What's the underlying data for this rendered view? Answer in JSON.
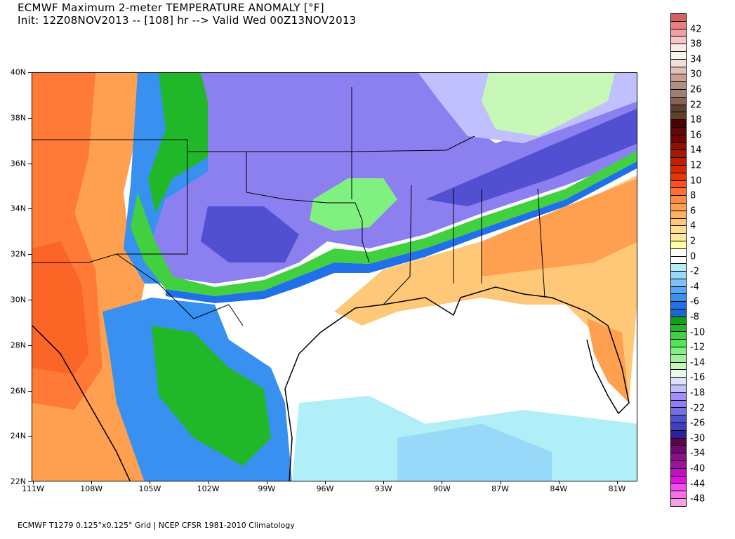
{
  "header": {
    "title": "ECMWF Maximum 2-meter TEMPERATURE ANOMALY [°F]",
    "subtitle": "Init: 12Z08NOV2013 -- [108] hr --> Valid Wed 00Z13NOV2013"
  },
  "map": {
    "lat_labels": [
      "40N",
      "38N",
      "36N",
      "34N",
      "32N",
      "30N",
      "28N",
      "26N",
      "24N",
      "22N"
    ],
    "lon_labels": [
      "111W",
      "108W",
      "105W",
      "102W",
      "99W",
      "96W",
      "93W",
      "90W",
      "87W",
      "84W",
      "81W"
    ],
    "extent": {
      "lon": [
        -111,
        -80
      ],
      "lat": [
        22,
        40
      ]
    }
  },
  "colorbar": {
    "labels": [
      "42",
      "38",
      "34",
      "30",
      "26",
      "22",
      "18",
      "16",
      "14",
      "12",
      "10",
      "8",
      "6",
      "4",
      "2",
      "0",
      "-2",
      "-4",
      "-6",
      "-8",
      "-10",
      "-12",
      "-14",
      "-16",
      "-18",
      "-22",
      "-26",
      "-30",
      "-34",
      "-40",
      "-44",
      "-48"
    ],
    "colors": [
      "#d86060",
      "#e88080",
      "#f0a0a8",
      "#f8c8c8",
      "#fcece8",
      "#fcf4ee",
      "#f0e0d8",
      "#e0c0b8",
      "#c8a090",
      "#b09080",
      "#a08070",
      "#8c6058",
      "#5a4030",
      "#604028",
      "#500000",
      "#600808",
      "#780000",
      "#901000",
      "#a81800",
      "#c02000",
      "#d82800",
      "#e83800",
      "#ff5020",
      "#ff7030",
      "#ff8c40",
      "#ffa050",
      "#ffb060",
      "#ffc878",
      "#ffe090",
      "#ffe8a0",
      "#ffffa0",
      "#ffffff",
      "#ffffff",
      "#b0eef8",
      "#98d8f8",
      "#80c0f8",
      "#58a8f8",
      "#3890f0",
      "#2070e8",
      "#1868d0",
      "#10a010",
      "#20b828",
      "#40d040",
      "#50e850",
      "#80f080",
      "#a0f0a0",
      "#c8f8b8",
      "#e8fce8",
      "#e0e0ff",
      "#c0c0ff",
      "#a090ff",
      "#8c80f0",
      "#7870e0",
      "#5050d0",
      "#4040c0",
      "#3020a0",
      "#600050",
      "#700870",
      "#8a108a",
      "#a010a0",
      "#c010c0",
      "#e010e0",
      "#f050e8",
      "#f870e8",
      "#f8a0e8"
    ]
  },
  "footer": "ECMWF T1279 0.125°x0.125° Grid | NCEP CFSR 1981-2010 Climatology"
}
